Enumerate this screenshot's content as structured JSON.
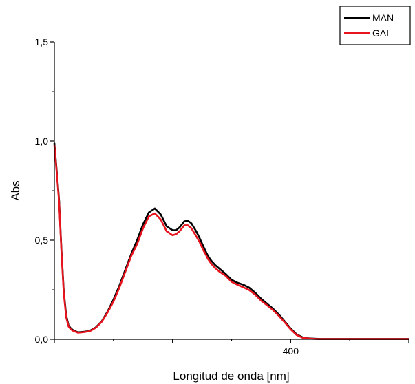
{
  "chart_data": {
    "type": "line",
    "xlabel": "Longitud de onda [nm]",
    "ylabel": "Abs",
    "xlim": [
      200,
      500
    ],
    "ylim": [
      0,
      1.5
    ],
    "x_ticks": [
      {
        "value": 400,
        "label": "400"
      }
    ],
    "y_ticks": [
      {
        "value": 0,
        "label": "0,0"
      },
      {
        "value": 0.5,
        "label": "0,5"
      },
      {
        "value": 1.0,
        "label": "1,0"
      },
      {
        "value": 1.5,
        "label": "1,5"
      }
    ],
    "legend_position": "top-right",
    "series": [
      {
        "name": "MAN",
        "color": "#000000",
        "x": [
          200,
          202,
          204,
          206,
          208,
          210,
          212,
          214,
          216,
          218,
          220,
          225,
          230,
          235,
          240,
          245,
          250,
          255,
          260,
          265,
          270,
          275,
          280,
          285,
          290,
          295,
          300,
          303,
          306,
          308,
          310,
          313,
          316,
          320,
          323,
          326,
          328,
          330,
          333,
          336,
          340,
          345,
          350,
          355,
          360,
          365,
          370,
          375,
          380,
          385,
          390,
          395,
          400,
          405,
          410,
          415,
          420,
          425,
          430,
          435,
          440,
          445,
          450,
          460,
          470,
          480,
          490,
          500
        ],
        "y": [
          0.99,
          0.85,
          0.7,
          0.45,
          0.24,
          0.12,
          0.07,
          0.055,
          0.045,
          0.04,
          0.035,
          0.038,
          0.043,
          0.06,
          0.09,
          0.14,
          0.2,
          0.27,
          0.35,
          0.43,
          0.5,
          0.58,
          0.64,
          0.66,
          0.63,
          0.57,
          0.55,
          0.55,
          0.565,
          0.58,
          0.595,
          0.598,
          0.585,
          0.545,
          0.51,
          0.47,
          0.445,
          0.42,
          0.395,
          0.375,
          0.355,
          0.33,
          0.3,
          0.285,
          0.275,
          0.26,
          0.235,
          0.205,
          0.18,
          0.155,
          0.125,
          0.09,
          0.055,
          0.025,
          0.01,
          0.005,
          0.003,
          0.002,
          0.002,
          0.002,
          0.002,
          0.002,
          0.002,
          0.002,
          0.002,
          0.002,
          0.002,
          0.002
        ]
      },
      {
        "name": "GAL",
        "color": "#e8141e",
        "x": [
          200,
          202,
          204,
          206,
          208,
          210,
          212,
          214,
          216,
          218,
          220,
          225,
          230,
          235,
          240,
          245,
          250,
          255,
          260,
          265,
          270,
          275,
          280,
          285,
          290,
          295,
          300,
          303,
          306,
          308,
          310,
          313,
          316,
          320,
          323,
          326,
          328,
          330,
          333,
          336,
          340,
          345,
          350,
          355,
          360,
          365,
          370,
          375,
          380,
          385,
          390,
          395,
          400,
          405,
          410,
          415,
          420,
          425,
          430,
          435,
          440,
          445,
          450,
          460,
          470,
          480,
          490,
          500
        ],
        "y": [
          0.98,
          0.84,
          0.69,
          0.44,
          0.23,
          0.11,
          0.065,
          0.05,
          0.042,
          0.038,
          0.033,
          0.036,
          0.041,
          0.058,
          0.088,
          0.135,
          0.19,
          0.26,
          0.34,
          0.42,
          0.48,
          0.56,
          0.62,
          0.635,
          0.605,
          0.545,
          0.525,
          0.53,
          0.545,
          0.56,
          0.575,
          0.575,
          0.56,
          0.52,
          0.49,
          0.45,
          0.43,
          0.405,
          0.38,
          0.36,
          0.34,
          0.32,
          0.29,
          0.275,
          0.262,
          0.248,
          0.225,
          0.195,
          0.172,
          0.148,
          0.118,
          0.085,
          0.05,
          0.022,
          0.008,
          0.004,
          0.002,
          0.001,
          0.001,
          0.001,
          0.001,
          0.001,
          0.001,
          0.001,
          0.001,
          0.001,
          0.001,
          0.001
        ]
      }
    ]
  }
}
